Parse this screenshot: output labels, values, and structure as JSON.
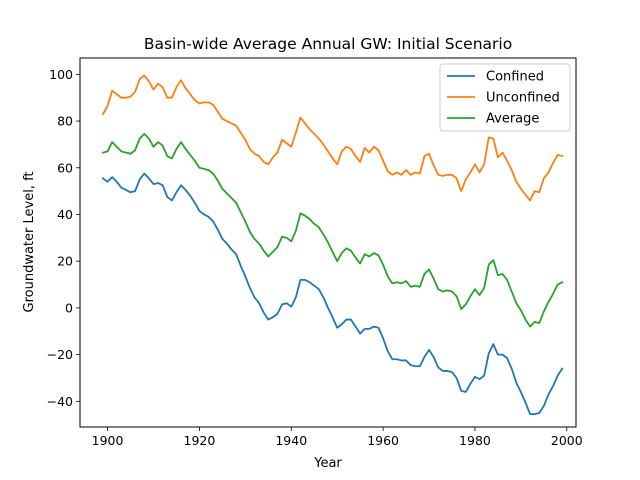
{
  "chart_data": {
    "type": "line",
    "title": "Basin-wide Average Annual GW: Initial Scenario",
    "xlabel": "Year",
    "ylabel": "Groundwater Level, ft",
    "xlim": [
      1894,
      2002
    ],
    "ylim": [
      -51,
      107
    ],
    "xticks": [
      1900,
      1920,
      1940,
      1960,
      1980,
      2000
    ],
    "yticks": [
      -40,
      -20,
      0,
      20,
      40,
      60,
      80,
      100
    ],
    "grid": false,
    "legend_position": "top-right",
    "x": [
      1899,
      1900,
      1901,
      1902,
      1903,
      1904,
      1905,
      1906,
      1907,
      1908,
      1909,
      1910,
      1911,
      1912,
      1913,
      1914,
      1915,
      1916,
      1917,
      1918,
      1919,
      1920,
      1921,
      1922,
      1923,
      1924,
      1925,
      1926,
      1927,
      1928,
      1929,
      1930,
      1931,
      1932,
      1933,
      1934,
      1935,
      1936,
      1937,
      1938,
      1939,
      1940,
      1941,
      1942,
      1943,
      1944,
      1945,
      1946,
      1947,
      1948,
      1949,
      1950,
      1951,
      1952,
      1953,
      1954,
      1955,
      1956,
      1957,
      1958,
      1959,
      1960,
      1961,
      1962,
      1963,
      1964,
      1965,
      1966,
      1967,
      1968,
      1969,
      1970,
      1971,
      1972,
      1973,
      1974,
      1975,
      1976,
      1977,
      1978,
      1979,
      1980,
      1981,
      1982,
      1983,
      1984,
      1985,
      1986,
      1987,
      1988,
      1989,
      1990,
      1991,
      1992,
      1993,
      1994,
      1995,
      1996,
      1997,
      1998,
      1999
    ],
    "series": [
      {
        "name": "Confined",
        "color": "#1f77b4",
        "values": [
          55.5,
          54.0,
          56.0,
          54.0,
          51.5,
          50.5,
          49.5,
          50.0,
          55.0,
          57.5,
          55.5,
          53.0,
          53.5,
          52.5,
          47.5,
          46.0,
          49.5,
          52.5,
          50.5,
          48.0,
          45.0,
          41.5,
          40.0,
          39.0,
          37.0,
          33.5,
          29.5,
          27.5,
          25.0,
          23.0,
          18.0,
          13.5,
          8.5,
          4.5,
          2.0,
          -2.0,
          -5.0,
          -4.0,
          -2.5,
          1.5,
          2.0,
          0.5,
          4.5,
          12.0,
          12.0,
          11.0,
          9.5,
          8.0,
          4.5,
          0.0,
          -4.0,
          -8.5,
          -7.0,
          -5.0,
          -5.0,
          -8.0,
          -11.0,
          -9.0,
          -9.0,
          -8.0,
          -8.5,
          -13.0,
          -18.5,
          -22.0,
          -22.0,
          -22.5,
          -22.5,
          -24.5,
          -25.0,
          -25.0,
          -21.0,
          -18.0,
          -21.0,
          -25.5,
          -27.0,
          -27.0,
          -27.5,
          -30.0,
          -35.5,
          -36.0,
          -32.5,
          -29.5,
          -30.5,
          -29.0,
          -19.5,
          -15.5,
          -20.0,
          -20.0,
          -21.5,
          -26.0,
          -32.0,
          -36.0,
          -40.5,
          -45.5,
          -45.5,
          -45.0,
          -42.0,
          -37.0,
          -33.5,
          -29.0,
          -26.0
        ]
      },
      {
        "name": "Unconfined",
        "color": "#ff7f0e",
        "values": [
          83.0,
          86.5,
          93.0,
          91.5,
          90.0,
          90.0,
          90.5,
          92.5,
          98.0,
          99.5,
          97.0,
          93.5,
          96.0,
          94.5,
          90.0,
          90.0,
          94.5,
          97.5,
          94.0,
          91.5,
          89.0,
          87.5,
          88.0,
          88.0,
          87.0,
          84.0,
          81.0,
          80.0,
          79.0,
          78.0,
          75.0,
          72.0,
          68.0,
          66.0,
          65.0,
          62.5,
          61.5,
          64.5,
          66.5,
          72.0,
          70.5,
          69.0,
          75.0,
          81.5,
          79.0,
          76.5,
          74.5,
          72.5,
          70.0,
          67.0,
          64.0,
          61.5,
          67.0,
          69.0,
          68.0,
          65.0,
          62.5,
          68.5,
          66.5,
          69.0,
          67.5,
          63.0,
          58.5,
          57.0,
          58.0,
          57.0,
          59.0,
          57.0,
          58.0,
          57.5,
          65.0,
          66.0,
          61.0,
          57.0,
          56.5,
          57.0,
          57.0,
          55.5,
          50.0,
          55.0,
          58.0,
          61.5,
          58.0,
          61.5,
          73.0,
          72.5,
          64.5,
          66.5,
          63.0,
          59.0,
          54.0,
          51.0,
          48.5,
          46.0,
          50.0,
          49.5,
          55.5,
          58.0,
          62.0,
          65.5,
          65.0
        ]
      },
      {
        "name": "Average",
        "color": "#2ca02c",
        "values": [
          66.5,
          67.0,
          71.0,
          69.0,
          67.0,
          66.5,
          66.0,
          67.5,
          72.5,
          74.5,
          72.5,
          69.0,
          71.0,
          69.5,
          65.0,
          64.0,
          68.0,
          71.0,
          68.0,
          65.5,
          63.0,
          60.0,
          59.5,
          59.0,
          57.5,
          54.5,
          51.0,
          49.0,
          47.0,
          45.0,
          41.0,
          37.0,
          32.5,
          29.5,
          27.5,
          24.5,
          22.0,
          24.0,
          26.0,
          30.5,
          30.0,
          28.5,
          33.0,
          40.5,
          39.5,
          38.0,
          36.0,
          34.5,
          31.5,
          28.0,
          24.0,
          20.0,
          23.5,
          25.5,
          24.5,
          21.5,
          19.0,
          23.0,
          22.0,
          23.5,
          22.5,
          18.5,
          13.5,
          10.5,
          11.0,
          10.5,
          11.5,
          9.0,
          9.5,
          9.0,
          14.5,
          16.5,
          12.5,
          8.0,
          7.0,
          7.5,
          7.0,
          5.0,
          -0.5,
          1.5,
          5.0,
          8.0,
          5.5,
          8.5,
          18.5,
          20.5,
          14.0,
          14.5,
          12.0,
          7.0,
          2.0,
          -1.0,
          -5.0,
          -8.0,
          -6.0,
          -6.5,
          -1.5,
          2.5,
          6.0,
          10.0,
          11.0
        ]
      }
    ]
  }
}
